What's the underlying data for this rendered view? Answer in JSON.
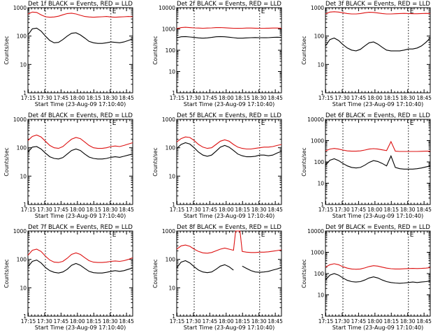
{
  "figure": {
    "x_title": "Start Time (23-Aug-09 17:10:40)",
    "y_title": "Counts/sec",
    "series_colors": {
      "events": "#000000",
      "lld": "#dd1111"
    },
    "event_marker": "E"
  },
  "chart_data": [
    {
      "type": "line",
      "title": "Det 1f BLACK = Events, RED = LLD",
      "xlabel": "Start Time (23-Aug-09 17:10:40)",
      "ylabel": "Counts/sec",
      "yscale": "log",
      "ylim": [
        1,
        1000
      ],
      "yticks": [
        "1",
        "10",
        "100",
        "1000"
      ],
      "xticks": [
        "17:15",
        "17:30",
        "17:45",
        "18:00",
        "18:15",
        "18:30",
        "18:45"
      ],
      "xlim_minutes_from_1710": [
        4,
        100
      ],
      "marker_lines_minutes": [
        20,
        80
      ],
      "marker_label_minutes": 80,
      "marker_label": "E",
      "x": [
        4,
        8,
        12,
        16,
        20,
        24,
        28,
        32,
        36,
        40,
        44,
        48,
        52,
        56,
        60,
        64,
        68,
        72,
        76,
        80,
        84,
        88,
        92,
        96,
        100
      ],
      "series": [
        {
          "color": "#dd1111",
          "values": [
            600,
            700,
            680,
            560,
            480,
            460,
            470,
            500,
            560,
            620,
            640,
            600,
            540,
            490,
            470,
            460,
            470,
            480,
            490,
            470,
            460,
            470,
            480,
            490,
            480
          ]
        },
        {
          "color": "#000000",
          "values": [
            110,
            180,
            190,
            150,
            100,
            70,
            58,
            60,
            75,
            100,
            125,
            130,
            110,
            85,
            65,
            58,
            55,
            55,
            58,
            62,
            60,
            58,
            62,
            70,
            80
          ]
        }
      ]
    },
    {
      "type": "line",
      "title": "Det 2f BLACK = Events, RED = LLD",
      "xlabel": "Start Time (23-Aug-09 17:10:40)",
      "ylabel": "Counts/sec",
      "yscale": "log",
      "ylim": [
        1,
        10000
      ],
      "yticks": [
        "1",
        "10",
        "100",
        "1000",
        "10000"
      ],
      "xticks": [
        "17:15",
        "17:30",
        "17:45",
        "18:00",
        "18:15",
        "18:30",
        "18:45"
      ],
      "xlim_minutes_from_1710": [
        4,
        100
      ],
      "marker_lines_minutes": [
        20,
        80
      ],
      "marker_label_minutes": 80,
      "marker_label": "E",
      "x": [
        4,
        8,
        12,
        16,
        20,
        24,
        28,
        32,
        36,
        40,
        44,
        48,
        52,
        56,
        60,
        64,
        68,
        72,
        76,
        80,
        84,
        88,
        92,
        96,
        100
      ],
      "series": [
        {
          "color": "#dd1111",
          "values": [
            1050,
            1150,
            1200,
            1150,
            1120,
            1100,
            1080,
            1100,
            1120,
            1150,
            1160,
            1140,
            1100,
            1080,
            1070,
            1080,
            1100,
            1100,
            1090,
            1080,
            1080,
            1090,
            1100,
            1100,
            1090
          ]
        },
        {
          "color": "#000000",
          "values": [
            380,
            430,
            440,
            420,
            400,
            380,
            370,
            380,
            400,
            430,
            440,
            430,
            410,
            390,
            370,
            370,
            380,
            390,
            395,
            390,
            385,
            390,
            400,
            410,
            400
          ]
        }
      ]
    },
    {
      "type": "line",
      "title": "Det 3f BLACK = Events, RED = LLD",
      "xlabel": "Start Time (23-Aug-09 17:10:40)",
      "ylabel": "Counts/sec",
      "yscale": "log",
      "ylim": [
        1,
        1000
      ],
      "yticks": [
        "1",
        "10",
        "100",
        "1000"
      ],
      "xticks": [
        "17:15",
        "17:30",
        "17:45",
        "18:00",
        "18:15",
        "18:30",
        "18:45"
      ],
      "xlim_minutes_from_1710": [
        4,
        100
      ],
      "marker_lines_minutes": [
        20,
        80
      ],
      "marker_label_minutes": 80,
      "marker_label": "E",
      "x": [
        4,
        8,
        12,
        16,
        20,
        24,
        28,
        32,
        36,
        40,
        44,
        48,
        52,
        56,
        60,
        64,
        68,
        72,
        76,
        80,
        84,
        88,
        92,
        96,
        100
      ],
      "series": [
        {
          "color": "#dd1111",
          "values": [
            600,
            700,
            720,
            700,
            660,
            620,
            600,
            600,
            620,
            660,
            690,
            680,
            650,
            620,
            600,
            600,
            610,
            620,
            630,
            620,
            610,
            610,
            620,
            630,
            620
          ]
        },
        {
          "color": "#000000",
          "values": [
            45,
            75,
            85,
            70,
            50,
            38,
            32,
            30,
            34,
            45,
            58,
            62,
            52,
            40,
            32,
            30,
            30,
            30,
            32,
            35,
            35,
            38,
            45,
            60,
            85
          ]
        }
      ]
    },
    {
      "type": "line",
      "title": "Det 4f BLACK = Events, RED = LLD",
      "xlabel": "Start Time (23-Aug-09 17:10:40)",
      "ylabel": "Counts/sec",
      "yscale": "log",
      "ylim": [
        1,
        1000
      ],
      "yticks": [
        "1",
        "10",
        "100",
        "1000"
      ],
      "xticks": [
        "17:15",
        "17:30",
        "17:45",
        "18:00",
        "18:15",
        "18:30",
        "18:45"
      ],
      "xlim_minutes_from_1710": [
        4,
        100
      ],
      "marker_lines_minutes": [
        20,
        80
      ],
      "marker_label_minutes": 80,
      "marker_label": "E",
      "x": [
        4,
        8,
        12,
        16,
        20,
        24,
        28,
        32,
        36,
        40,
        44,
        48,
        52,
        56,
        60,
        64,
        68,
        72,
        76,
        80,
        84,
        88,
        92,
        96,
        100
      ],
      "series": [
        {
          "color": "#dd1111",
          "values": [
            180,
            250,
            280,
            240,
            170,
            120,
            100,
            95,
            110,
            150,
            200,
            230,
            210,
            160,
            120,
            100,
            95,
            95,
            100,
            110,
            115,
            110,
            120,
            135,
            150
          ]
        },
        {
          "color": "#000000",
          "values": [
            70,
            105,
            110,
            90,
            65,
            48,
            42,
            40,
            45,
            60,
            80,
            90,
            80,
            60,
            47,
            42,
            40,
            40,
            42,
            46,
            48,
            46,
            50,
            55,
            60
          ]
        }
      ]
    },
    {
      "type": "line",
      "title": "Det 5f BLACK = Events, RED = LLD",
      "xlabel": "Start Time (23-Aug-09 17:10:40)",
      "ylabel": "Counts/sec",
      "yscale": "log",
      "ylim": [
        1,
        1000
      ],
      "yticks": [
        "1",
        "10",
        "100",
        "1000"
      ],
      "xticks": [
        "17:15",
        "17:30",
        "17:45",
        "18:00",
        "18:15",
        "18:30",
        "18:45"
      ],
      "xlim_minutes_from_1710": [
        4,
        100
      ],
      "marker_lines_minutes": [
        20,
        80
      ],
      "marker_label_minutes": 80,
      "marker_label": "E",
      "x": [
        4,
        8,
        12,
        16,
        20,
        24,
        28,
        32,
        36,
        40,
        44,
        48,
        52,
        56,
        60,
        64,
        68,
        72,
        76,
        80,
        84,
        88,
        92,
        96,
        100
      ],
      "series": [
        {
          "color": "#dd1111",
          "values": [
            160,
            210,
            240,
            230,
            180,
            130,
            105,
            95,
            100,
            130,
            170,
            190,
            170,
            130,
            105,
            95,
            90,
            90,
            95,
            100,
            105,
            105,
            110,
            120,
            130
          ]
        },
        {
          "color": "#000000",
          "values": [
            95,
            130,
            150,
            135,
            100,
            70,
            55,
            50,
            55,
            75,
            105,
            120,
            105,
            80,
            60,
            52,
            48,
            48,
            50,
            55,
            55,
            52,
            55,
            65,
            75
          ]
        }
      ]
    },
    {
      "type": "line",
      "title": "Det 6f BLACK = Events, RED = LLD",
      "xlabel": "Start Time (23-Aug-09 17:10:40)",
      "ylabel": "Counts/sec",
      "yscale": "log",
      "ylim": [
        1,
        10000
      ],
      "yticks": [
        "1",
        "10",
        "100",
        "1000",
        "10000"
      ],
      "xticks": [
        "17:15",
        "17:30",
        "17:45",
        "18:00",
        "18:15",
        "18:30",
        "18:45"
      ],
      "xlim_minutes_from_1710": [
        4,
        100
      ],
      "marker_lines_minutes": [
        20,
        80
      ],
      "marker_label_minutes": 80,
      "marker_label": "E",
      "x": [
        4,
        8,
        12,
        16,
        20,
        24,
        28,
        32,
        36,
        40,
        44,
        48,
        52,
        56,
        60,
        64,
        68,
        72,
        76,
        80,
        84,
        88,
        92,
        96,
        100
      ],
      "series": [
        {
          "color": "#dd1111",
          "values": [
            330,
            400,
            430,
            400,
            360,
            330,
            320,
            320,
            330,
            360,
            400,
            420,
            400,
            370,
            340,
            900,
            320,
            310,
            310,
            310,
            310,
            310,
            315,
            320,
            320
          ]
        },
        {
          "color": "#000000",
          "values": [
            70,
            120,
            140,
            115,
            85,
            65,
            55,
            52,
            55,
            70,
            95,
            115,
            105,
            85,
            65,
            190,
            55,
            48,
            46,
            46,
            46,
            48,
            52,
            58,
            65
          ]
        }
      ]
    },
    {
      "type": "line",
      "title": "Det 7f BLACK = Events, RED = LLD",
      "xlabel": "Start Time (23-Aug-09 17:10:40)",
      "ylabel": "Counts/sec",
      "yscale": "log",
      "ylim": [
        1,
        1000
      ],
      "yticks": [
        "1",
        "10",
        "100",
        "1000"
      ],
      "xticks": [
        "17:15",
        "17:30",
        "17:45",
        "18:00",
        "18:15",
        "18:30",
        "18:45"
      ],
      "xlim_minutes_from_1710": [
        4,
        100
      ],
      "marker_lines_minutes": [
        20,
        80
      ],
      "marker_label_minutes": 80,
      "marker_label": "E",
      "x": [
        4,
        8,
        12,
        16,
        20,
        24,
        28,
        32,
        36,
        40,
        44,
        48,
        52,
        56,
        60,
        64,
        68,
        72,
        76,
        80,
        84,
        88,
        92,
        96,
        100
      ],
      "series": [
        {
          "color": "#dd1111",
          "values": [
            140,
            210,
            230,
            190,
            130,
            95,
            80,
            78,
            85,
            110,
            150,
            170,
            150,
            115,
            90,
            80,
            78,
            78,
            80,
            85,
            88,
            85,
            90,
            100,
            115
          ]
        },
        {
          "color": "#000000",
          "values": [
            55,
            85,
            95,
            75,
            52,
            40,
            35,
            33,
            36,
            45,
            62,
            72,
            62,
            48,
            38,
            34,
            33,
            33,
            35,
            38,
            40,
            38,
            40,
            45,
            50
          ]
        }
      ]
    },
    {
      "type": "line",
      "title": "Det 8f BLACK = Events, RED = LLD",
      "xlabel": "Start Time (23-Aug-09 17:10:40)",
      "ylabel": "Counts/sec",
      "yscale": "log",
      "ylim": [
        1,
        1000
      ],
      "yticks": [
        "1",
        "10",
        "100",
        "1000"
      ],
      "xticks": [
        "17:15",
        "17:30",
        "17:45",
        "18:00",
        "18:15",
        "18:30",
        "18:45"
      ],
      "xlim_minutes_from_1710": [
        4,
        100
      ],
      "marker_lines_minutes": [
        20,
        80
      ],
      "marker_label_minutes": 80,
      "marker_label": "E",
      "x": [
        4,
        8,
        12,
        16,
        20,
        24,
        28,
        32,
        36,
        40,
        44,
        48,
        52,
        56,
        58,
        62,
        64,
        68,
        72,
        76,
        80,
        84,
        88,
        92,
        96,
        100
      ],
      "series": [
        {
          "color": "#dd1111",
          "values": [
            230,
            300,
            320,
            290,
            230,
            190,
            170,
            165,
            175,
            200,
            230,
            250,
            230,
            210,
            1000,
            1000,
            190,
            180,
            175,
            175,
            180,
            180,
            185,
            195,
            205,
            215
          ]
        },
        {
          "color": "#000000",
          "values": [
            50,
            80,
            90,
            75,
            55,
            42,
            36,
            34,
            36,
            45,
            58,
            65,
            55,
            42,
            null,
            null,
            58,
            48,
            40,
            36,
            35,
            36,
            38,
            42,
            46,
            52
          ]
        }
      ]
    },
    {
      "type": "line",
      "title": "Det 9f BLACK = Events, RED = LLD",
      "xlabel": "Start Time (23-Aug-09 17:10:40)",
      "ylabel": "Counts/sec",
      "yscale": "log",
      "ylim": [
        1,
        10000
      ],
      "yticks": [
        "1",
        "10",
        "100",
        "1000",
        "10000"
      ],
      "xticks": [
        "17:15",
        "17:30",
        "17:45",
        "18:00",
        "18:15",
        "18:30",
        "18:45"
      ],
      "xlim_minutes_from_1710": [
        4,
        100
      ],
      "marker_lines_minutes": [
        20,
        80
      ],
      "marker_label_minutes": 80,
      "marker_label": "E",
      "x": [
        4,
        8,
        12,
        16,
        20,
        24,
        28,
        32,
        36,
        40,
        44,
        48,
        52,
        56,
        60,
        64,
        68,
        72,
        76,
        80,
        84,
        88,
        92,
        96,
        100
      ],
      "series": [
        {
          "color": "#dd1111",
          "values": [
            200,
            260,
            290,
            260,
            210,
            180,
            165,
            160,
            165,
            185,
            215,
            235,
            225,
            200,
            180,
            170,
            165,
            165,
            168,
            172,
            175,
            172,
            175,
            180,
            190
          ]
        },
        {
          "color": "#000000",
          "values": [
            50,
            85,
            100,
            85,
            62,
            48,
            42,
            40,
            42,
            50,
            62,
            70,
            62,
            50,
            42,
            38,
            36,
            35,
            36,
            38,
            40,
            38,
            40,
            42,
            45
          ]
        }
      ]
    }
  ]
}
